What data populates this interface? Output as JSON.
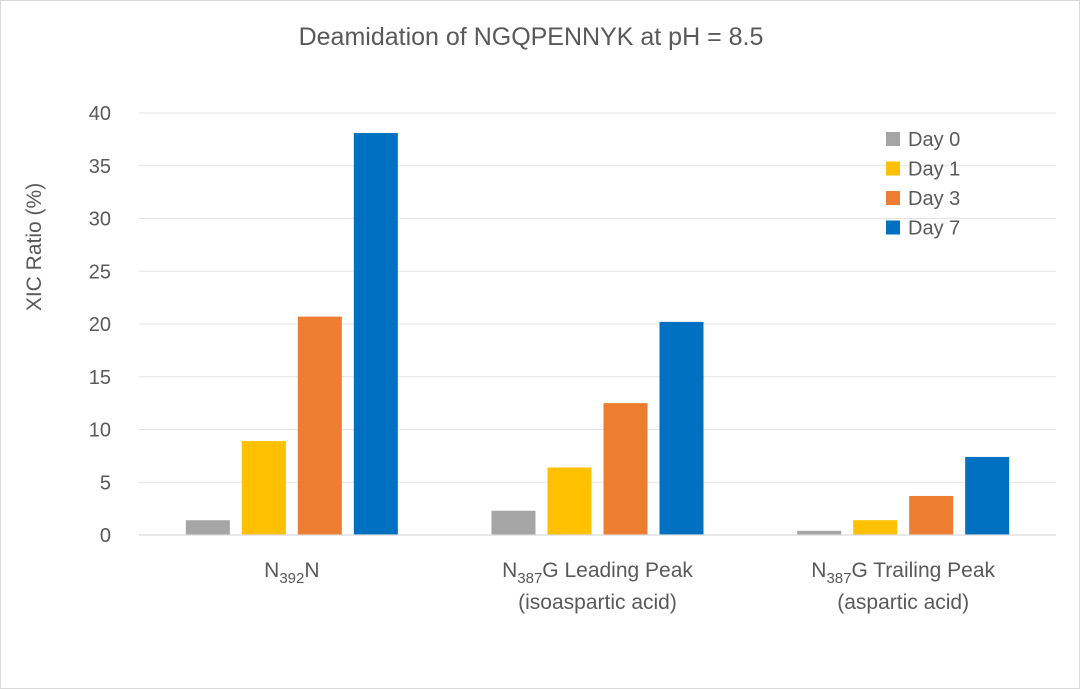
{
  "chart_data": {
    "type": "bar",
    "title": "Deamidation of NGQPENNYK at pH = 8.5",
    "xlabel": "",
    "ylabel": "XIC Ratio (%)",
    "ylim": [
      0,
      40
    ],
    "yticks": [
      0,
      5,
      10,
      15,
      20,
      25,
      30,
      35,
      40
    ],
    "grid": true,
    "legend_position": "top-right",
    "categories": [
      {
        "lines": [
          [
            {
              "t": "N"
            },
            {
              "t": "392",
              "sub": true
            },
            {
              "t": "N"
            }
          ]
        ]
      },
      {
        "lines": [
          [
            {
              "t": "N"
            },
            {
              "t": "387",
              "sub": true
            },
            {
              "t": "G Leading Peak"
            }
          ],
          [
            {
              "t": "(isoaspartic acid)"
            }
          ]
        ]
      },
      {
        "lines": [
          [
            {
              "t": "N"
            },
            {
              "t": "387",
              "sub": true
            },
            {
              "t": "G Trailing Peak"
            }
          ],
          [
            {
              "t": "(aspartic acid)"
            }
          ]
        ]
      }
    ],
    "series": [
      {
        "name": "Day 0",
        "color": "#a5a5a5",
        "values": [
          1.4,
          2.3,
          0.4
        ]
      },
      {
        "name": "Day 1",
        "color": "#ffc000",
        "values": [
          8.9,
          6.4,
          1.4
        ]
      },
      {
        "name": "Day 3",
        "color": "#ed7d31",
        "values": [
          20.7,
          12.5,
          3.7
        ]
      },
      {
        "name": "Day 7",
        "color": "#0070c0",
        "values": [
          38.1,
          20.2,
          7.4
        ]
      }
    ]
  }
}
